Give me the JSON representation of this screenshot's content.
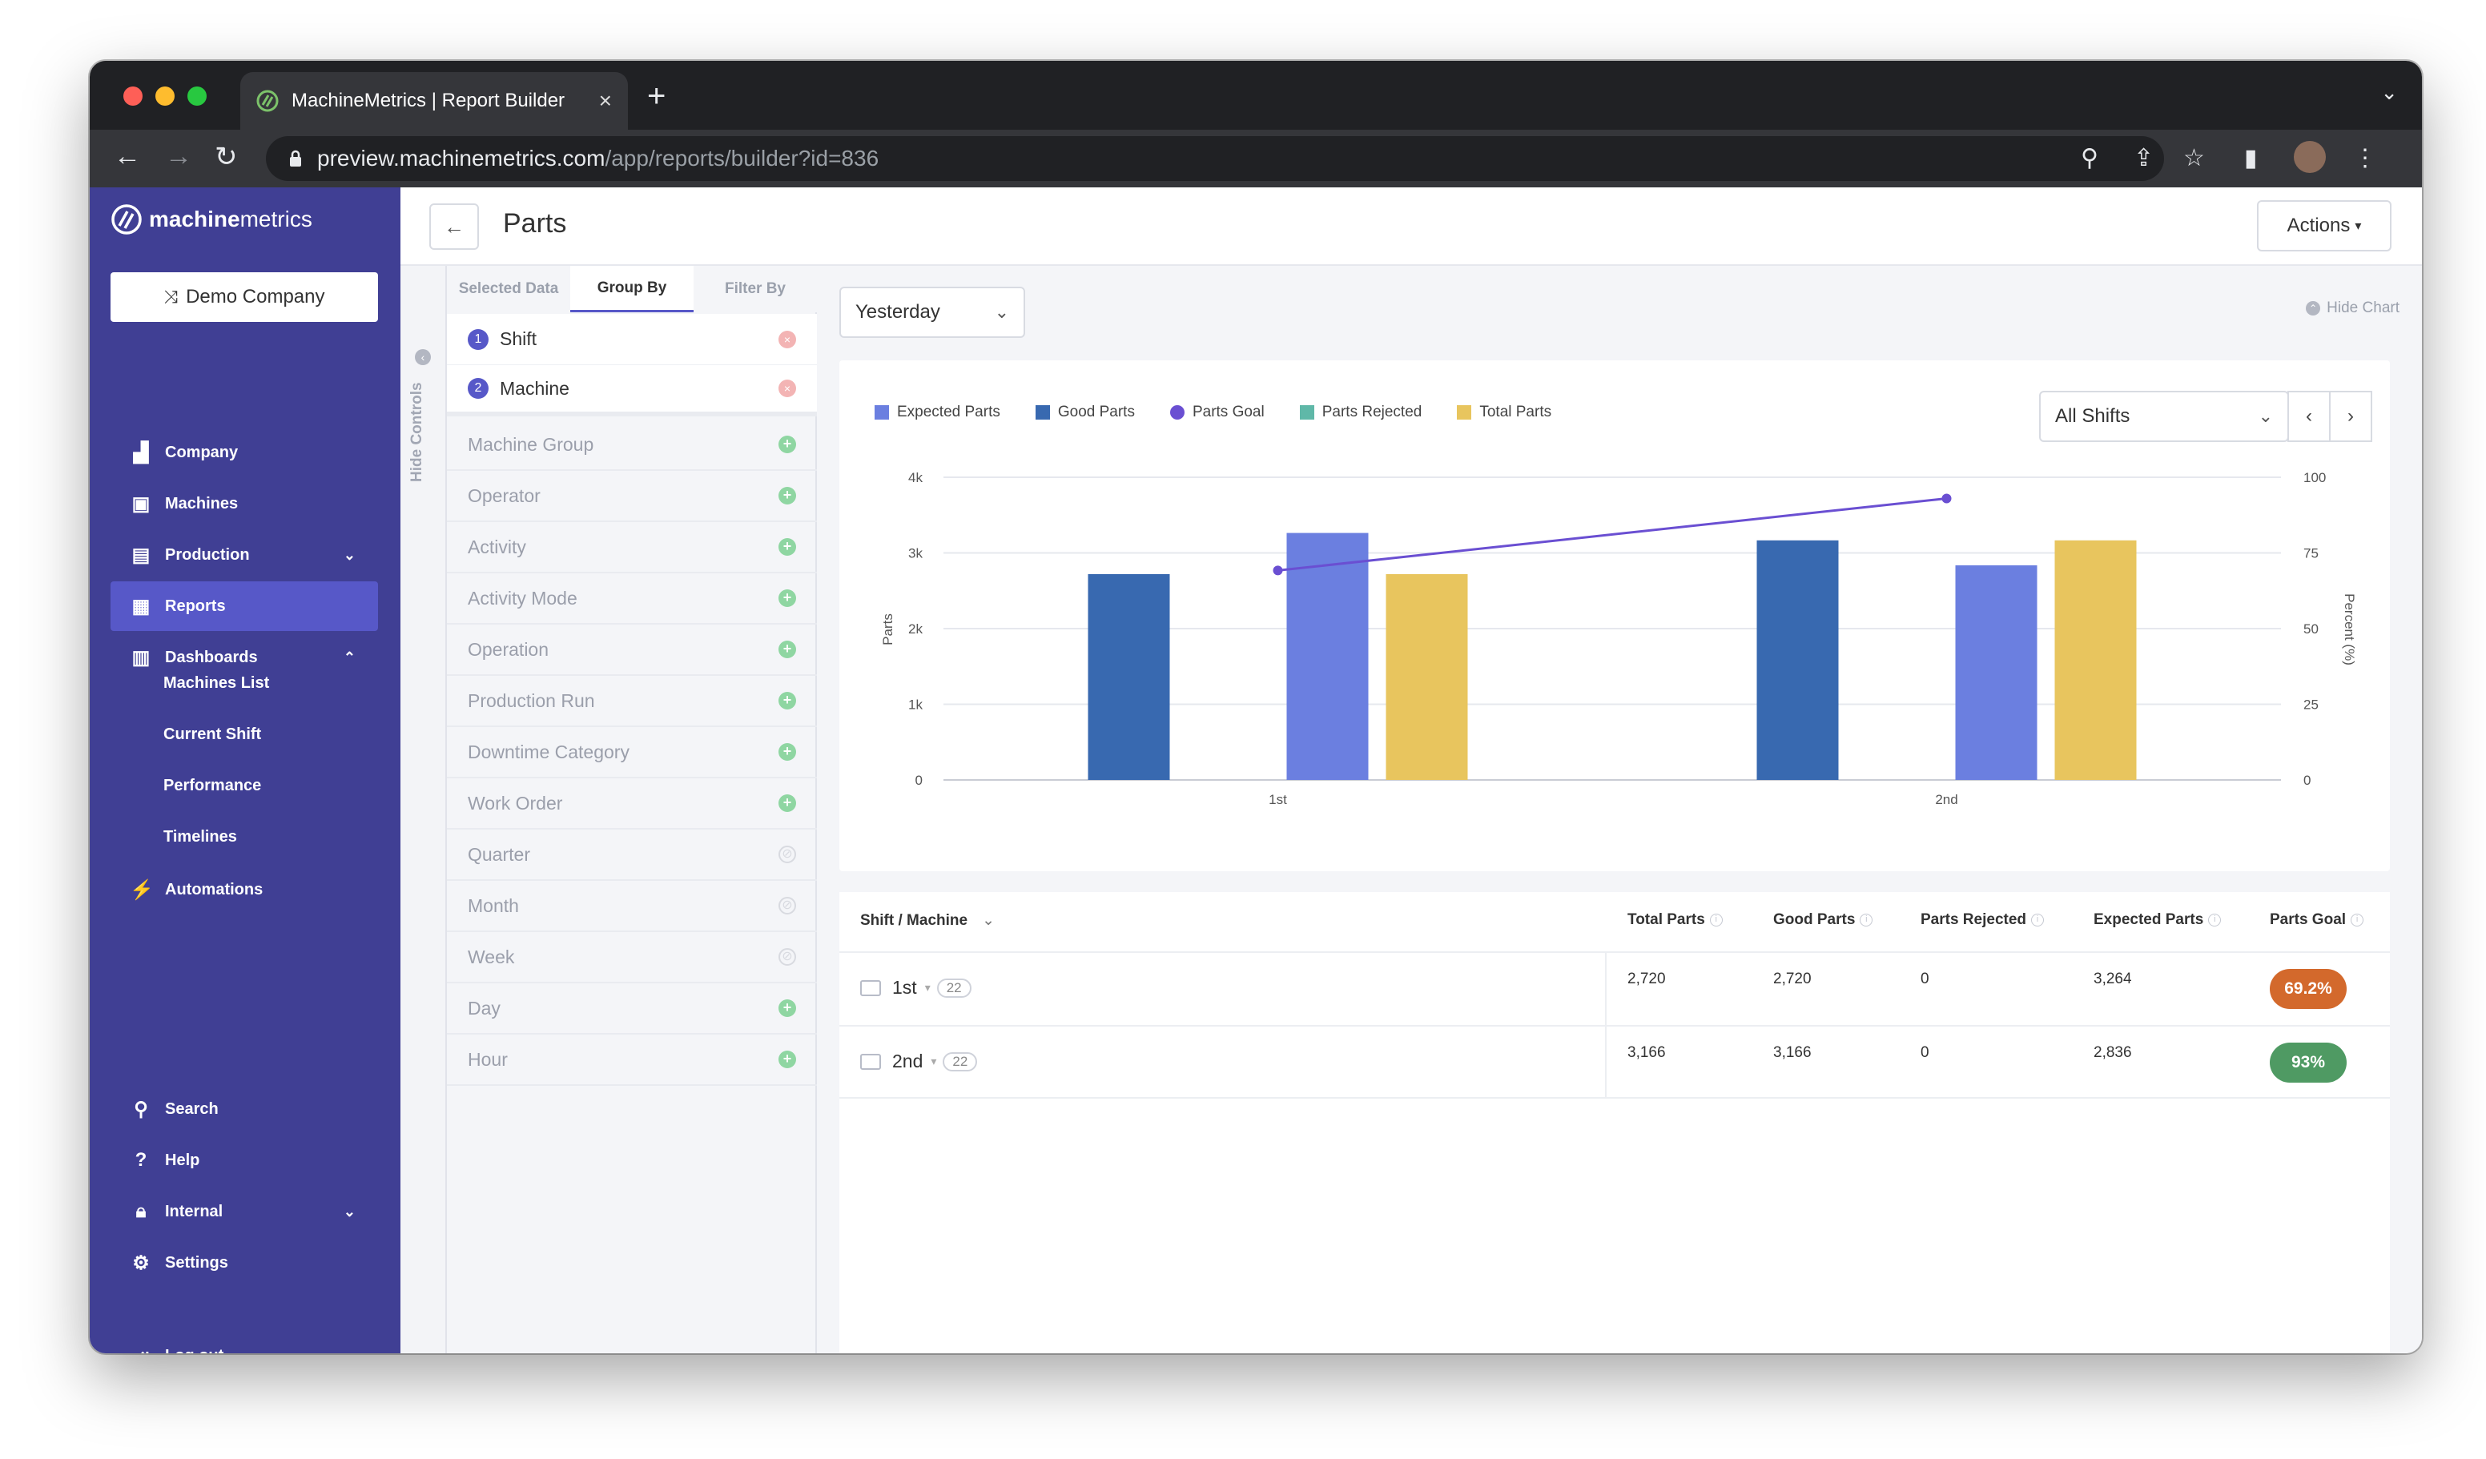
{
  "browser": {
    "tab_title": "MachineMetrics | Report Builder",
    "url_host": "preview.machinemetrics.com",
    "url_path": "/app/reports/builder?id=836"
  },
  "sidebar": {
    "logo_bold": "machine",
    "logo_rest": "metrics",
    "company_button": "Demo Company",
    "items": [
      {
        "label": "Company",
        "icon": "company-icon"
      },
      {
        "label": "Machines",
        "icon": "machines-icon"
      },
      {
        "label": "Production",
        "icon": "production-icon"
      },
      {
        "label": "Reports",
        "icon": "reports-icon"
      },
      {
        "label": "Dashboards",
        "icon": "dashboards-icon"
      }
    ],
    "dashboard_subitems": [
      "Machines List",
      "Current Shift",
      "Performance",
      "Timelines"
    ],
    "automations": "Automations",
    "bottom_items": [
      {
        "label": "Search",
        "icon": "search-icon"
      },
      {
        "label": "Help",
        "icon": "help-icon"
      },
      {
        "label": "Internal",
        "icon": "lock-icon"
      },
      {
        "label": "Settings",
        "icon": "gear-icon"
      }
    ],
    "logout": "Log out"
  },
  "header": {
    "title": "Parts",
    "actions_button": "Actions"
  },
  "controls": {
    "hide_label": "Hide Controls",
    "tabs": [
      "Selected Data",
      "Group By",
      "Filter By"
    ],
    "active_tab": "Group By",
    "selected": [
      {
        "num": "1",
        "label": "Shift"
      },
      {
        "num": "2",
        "label": "Machine"
      }
    ],
    "group_options": [
      {
        "label": "Machine Group",
        "state": "add"
      },
      {
        "label": "Operator",
        "state": "add"
      },
      {
        "label": "Activity",
        "state": "add"
      },
      {
        "label": "Activity Mode",
        "state": "add"
      },
      {
        "label": "Operation",
        "state": "add"
      },
      {
        "label": "Production Run",
        "state": "add"
      },
      {
        "label": "Downtime Category",
        "state": "add"
      },
      {
        "label": "Work Order",
        "state": "add"
      },
      {
        "label": "Quarter",
        "state": "disabled"
      },
      {
        "label": "Month",
        "state": "disabled"
      },
      {
        "label": "Week",
        "state": "disabled"
      },
      {
        "label": "Day",
        "state": "add"
      },
      {
        "label": "Hour",
        "state": "add"
      }
    ]
  },
  "main": {
    "date_range": "Yesterday",
    "hide_chart": "Hide Chart",
    "shift_select": "All Shifts"
  },
  "colors": {
    "expected": "#6b7fe0",
    "good": "#3869b0",
    "goal": "#6a4fd2",
    "rejected": "#5fb8a8",
    "total": "#e8c55e",
    "sidebar": "#403f94"
  },
  "chart_data": {
    "type": "bar",
    "categories": [
      "1st",
      "2nd"
    ],
    "series": [
      {
        "name": "Expected Parts",
        "values": [
          3264,
          2836
        ],
        "color": "#6b7fe0",
        "axis": "left"
      },
      {
        "name": "Good Parts",
        "values": [
          2720,
          3166
        ],
        "color": "#3869b0",
        "axis": "left"
      },
      {
        "name": "Parts Goal",
        "values": [
          69.2,
          93
        ],
        "color": "#6a4fd2",
        "axis": "right",
        "type": "line"
      },
      {
        "name": "Parts Rejected",
        "values": [
          0,
          0
        ],
        "color": "#5fb8a8",
        "axis": "left"
      },
      {
        "name": "Total Parts",
        "values": [
          2720,
          3166
        ],
        "color": "#e8c55e",
        "axis": "left"
      }
    ],
    "ylabel": "Parts",
    "y2label": "Percent (%)",
    "ylim": [
      0,
      4000
    ],
    "y2lim": [
      0,
      100
    ],
    "yticks": [
      "0",
      "1k",
      "2k",
      "3k",
      "4k"
    ],
    "y2ticks": [
      "0",
      "25",
      "50",
      "75",
      "100"
    ],
    "legend_position": "top-left",
    "grid": true
  },
  "table": {
    "group_header": "Shift / Machine",
    "columns": [
      "Total Parts",
      "Good Parts",
      "Parts Rejected",
      "Expected Parts",
      "Parts Goal"
    ],
    "rows": [
      {
        "label": "1st",
        "count": "22",
        "total": "2,720",
        "good": "2,720",
        "rejected": "0",
        "expected": "3,264",
        "goal": "69.2%",
        "goal_color": "#d3692c"
      },
      {
        "label": "2nd",
        "count": "22",
        "total": "3,166",
        "good": "3,166",
        "rejected": "0",
        "expected": "2,836",
        "goal": "93%",
        "goal_color": "#4f9a63"
      }
    ]
  }
}
